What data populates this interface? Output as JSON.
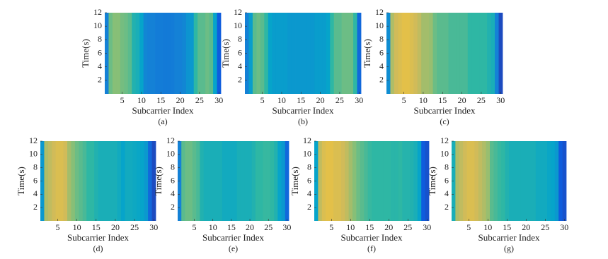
{
  "colormap": "parula",
  "chart_data": [
    {
      "type": "heatmap",
      "caption": "(a)",
      "xlabel": "Subcarrier Index",
      "ylabel": "Time(s)",
      "x": [
        1,
        2,
        3,
        4,
        5,
        6,
        7,
        8,
        9,
        10,
        11,
        12,
        13,
        14,
        15,
        16,
        17,
        18,
        19,
        20,
        21,
        22,
        23,
        24,
        25,
        26,
        27,
        28,
        29,
        30
      ],
      "values": [
        0.3,
        0.62,
        0.65,
        0.65,
        0.63,
        0.62,
        0.6,
        0.52,
        0.5,
        0.45,
        0.32,
        0.3,
        0.3,
        0.28,
        0.28,
        0.27,
        0.27,
        0.28,
        0.3,
        0.3,
        0.32,
        0.38,
        0.4,
        0.55,
        0.6,
        0.6,
        0.62,
        0.6,
        0.45,
        0.15
      ],
      "xlim": [
        0.5,
        30.5
      ],
      "xticks": [
        5,
        10,
        15,
        20,
        25,
        30
      ],
      "ylim": [
        0,
        12
      ],
      "yticks": [
        2,
        4,
        6,
        8,
        10,
        12
      ]
    },
    {
      "type": "heatmap",
      "caption": "(b)",
      "xlabel": "Subcarrier Index",
      "ylabel": "Time(s)",
      "x": [
        1,
        2,
        3,
        4,
        5,
        6,
        7,
        8,
        9,
        10,
        11,
        12,
        13,
        14,
        15,
        16,
        17,
        18,
        19,
        20,
        21,
        22,
        23,
        24,
        25,
        26,
        27,
        28,
        29,
        30
      ],
      "values": [
        0.3,
        0.42,
        0.6,
        0.62,
        0.6,
        0.55,
        0.45,
        0.42,
        0.42,
        0.42,
        0.42,
        0.4,
        0.4,
        0.4,
        0.4,
        0.4,
        0.4,
        0.4,
        0.42,
        0.42,
        0.42,
        0.45,
        0.55,
        0.6,
        0.6,
        0.62,
        0.62,
        0.62,
        0.55,
        0.2
      ],
      "xlim": [
        0.5,
        30.5
      ],
      "xticks": [
        5,
        10,
        15,
        20,
        25,
        30
      ],
      "ylim": [
        0,
        12
      ],
      "yticks": [
        2,
        4,
        6,
        8,
        10,
        12
      ]
    },
    {
      "type": "heatmap",
      "caption": "(c)",
      "xlabel": "Subcarrier Index",
      "ylabel": "Time(s)",
      "x": [
        1,
        2,
        3,
        4,
        5,
        6,
        7,
        8,
        9,
        10,
        11,
        12,
        13,
        14,
        15,
        16,
        17,
        18,
        19,
        20,
        21,
        22,
        23,
        24,
        25,
        26,
        27,
        28,
        29,
        30
      ],
      "values": [
        0.35,
        0.72,
        0.78,
        0.8,
        0.82,
        0.82,
        0.8,
        0.78,
        0.75,
        0.7,
        0.7,
        0.68,
        0.62,
        0.6,
        0.6,
        0.6,
        0.58,
        0.58,
        0.58,
        0.58,
        0.58,
        0.55,
        0.55,
        0.55,
        0.55,
        0.55,
        0.52,
        0.5,
        0.3,
        0.1
      ],
      "xlim": [
        0.5,
        30.5
      ],
      "xticks": [
        5,
        10,
        15,
        20,
        25,
        30
      ],
      "ylim": [
        0,
        12
      ],
      "yticks": [
        2,
        4,
        6,
        8,
        10,
        12
      ]
    },
    {
      "type": "heatmap",
      "caption": "(d)",
      "xlabel": "Subcarrier Index",
      "ylabel": "Time(s)",
      "x": [
        1,
        2,
        3,
        4,
        5,
        6,
        7,
        8,
        9,
        10,
        11,
        12,
        13,
        14,
        15,
        16,
        17,
        18,
        19,
        20,
        21,
        22,
        23,
        24,
        25,
        26,
        27,
        28,
        29,
        30
      ],
      "values": [
        0.4,
        0.72,
        0.75,
        0.78,
        0.8,
        0.8,
        0.78,
        0.7,
        0.65,
        0.62,
        0.6,
        0.58,
        0.55,
        0.55,
        0.52,
        0.5,
        0.5,
        0.5,
        0.5,
        0.5,
        0.48,
        0.45,
        0.48,
        0.48,
        0.47,
        0.46,
        0.45,
        0.4,
        0.2,
        0.1
      ],
      "xlim": [
        0.5,
        30.5
      ],
      "xticks": [
        5,
        10,
        15,
        20,
        25,
        30
      ],
      "ylim": [
        0,
        12
      ],
      "yticks": [
        2,
        4,
        6,
        8,
        10,
        12
      ]
    },
    {
      "type": "heatmap",
      "caption": "(e)",
      "xlabel": "Subcarrier Index",
      "ylabel": "Time(s)",
      "x": [
        1,
        2,
        3,
        4,
        5,
        6,
        7,
        8,
        9,
        10,
        11,
        12,
        13,
        14,
        15,
        16,
        17,
        18,
        19,
        20,
        21,
        22,
        23,
        24,
        25,
        26,
        27,
        28,
        29,
        30
      ],
      "values": [
        0.3,
        0.6,
        0.62,
        0.62,
        0.6,
        0.58,
        0.52,
        0.5,
        0.5,
        0.5,
        0.5,
        0.5,
        0.48,
        0.48,
        0.48,
        0.48,
        0.5,
        0.5,
        0.5,
        0.5,
        0.52,
        0.55,
        0.55,
        0.56,
        0.56,
        0.55,
        0.52,
        0.45,
        0.4,
        0.2
      ],
      "xlim": [
        0.5,
        30.5
      ],
      "xticks": [
        5,
        10,
        15,
        20,
        25,
        30
      ],
      "ylim": [
        0,
        12
      ],
      "yticks": [
        2,
        4,
        6,
        8,
        10,
        12
      ]
    },
    {
      "type": "heatmap",
      "caption": "(f)",
      "xlabel": "Subcarrier Index",
      "ylabel": "Time(s)",
      "x": [
        1,
        2,
        3,
        4,
        5,
        6,
        7,
        8,
        9,
        10,
        11,
        12,
        13,
        14,
        15,
        16,
        17,
        18,
        19,
        20,
        21,
        22,
        23,
        24,
        25,
        26,
        27,
        28,
        29,
        30
      ],
      "values": [
        0.45,
        0.75,
        0.8,
        0.82,
        0.82,
        0.8,
        0.8,
        0.78,
        0.75,
        0.7,
        0.65,
        0.62,
        0.6,
        0.58,
        0.56,
        0.55,
        0.55,
        0.55,
        0.55,
        0.55,
        0.54,
        0.54,
        0.55,
        0.53,
        0.53,
        0.52,
        0.5,
        0.45,
        0.15,
        0.12
      ],
      "xlim": [
        0.5,
        30.5
      ],
      "xticks": [
        5,
        10,
        15,
        20,
        25,
        30
      ],
      "ylim": [
        0,
        12
      ],
      "yticks": [
        2,
        4,
        6,
        8,
        10,
        12
      ]
    },
    {
      "type": "heatmap",
      "caption": "(g)",
      "xlabel": "Subcarrier Index",
      "ylabel": "Time(s)",
      "x": [
        1,
        2,
        3,
        4,
        5,
        6,
        7,
        8,
        9,
        10,
        11,
        12,
        13,
        14,
        15,
        16,
        17,
        18,
        19,
        20,
        21,
        22,
        23,
        24,
        25,
        26,
        27,
        28,
        29,
        30
      ],
      "values": [
        0.5,
        0.72,
        0.75,
        0.78,
        0.8,
        0.8,
        0.78,
        0.75,
        0.72,
        0.68,
        0.6,
        0.58,
        0.56,
        0.55,
        0.52,
        0.5,
        0.5,
        0.5,
        0.5,
        0.5,
        0.5,
        0.5,
        0.48,
        0.48,
        0.48,
        0.46,
        0.45,
        0.4,
        0.15,
        0.12
      ],
      "xlim": [
        0.5,
        30.5
      ],
      "xticks": [
        5,
        10,
        15,
        20,
        25,
        30
      ],
      "ylim": [
        0,
        12
      ],
      "yticks": [
        2,
        4,
        6,
        8,
        10,
        12
      ]
    }
  ]
}
